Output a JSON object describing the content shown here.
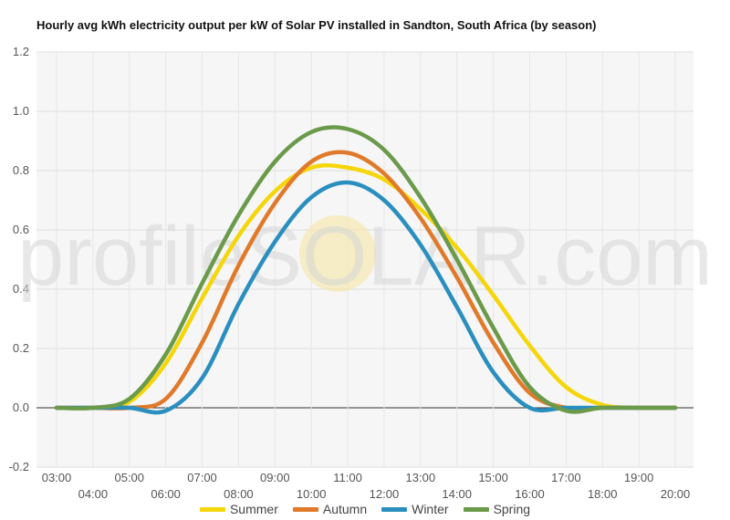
{
  "chart_data": {
    "type": "line",
    "title": "Hourly avg kWh electricity output per kW of Solar PV installed in Sandton, South Africa (by season)",
    "xlabel": "",
    "ylabel": "",
    "x": [
      "03:00",
      "04:00",
      "05:00",
      "06:00",
      "07:00",
      "08:00",
      "09:00",
      "10:00",
      "11:00",
      "12:00",
      "13:00",
      "14:00",
      "15:00",
      "16:00",
      "17:00",
      "18:00",
      "19:00",
      "20:00"
    ],
    "ylim": [
      -0.2,
      1.2
    ],
    "yticks": [
      "-0.2",
      "0.0",
      "0.2",
      "0.4",
      "0.6",
      "0.8",
      "1.0",
      "1.2"
    ],
    "grid": true,
    "legend_position": "bottom",
    "watermark": "profileSOLAR.com",
    "series": [
      {
        "name": "Summer",
        "color": "#f5d60a",
        "values": [
          0.0,
          0.0,
          0.02,
          0.15,
          0.37,
          0.58,
          0.73,
          0.81,
          0.81,
          0.77,
          0.67,
          0.54,
          0.38,
          0.21,
          0.07,
          0.01,
          0.0,
          0.0
        ]
      },
      {
        "name": "Autumn",
        "color": "#e07a2a",
        "values": [
          0.0,
          0.0,
          0.0,
          0.03,
          0.22,
          0.48,
          0.69,
          0.83,
          0.86,
          0.79,
          0.64,
          0.44,
          0.22,
          0.05,
          0.0,
          0.0,
          0.0,
          0.0
        ]
      },
      {
        "name": "Winter",
        "color": "#2a8fbf",
        "values": [
          0.0,
          0.0,
          0.0,
          -0.01,
          0.1,
          0.35,
          0.56,
          0.71,
          0.76,
          0.7,
          0.55,
          0.34,
          0.12,
          0.0,
          0.0,
          0.0,
          0.0,
          0.0
        ]
      },
      {
        "name": "Spring",
        "color": "#6a9a4a",
        "values": [
          0.0,
          0.0,
          0.03,
          0.18,
          0.42,
          0.65,
          0.83,
          0.93,
          0.94,
          0.87,
          0.71,
          0.5,
          0.27,
          0.07,
          -0.01,
          0.0,
          0.0,
          0.0
        ]
      }
    ]
  }
}
